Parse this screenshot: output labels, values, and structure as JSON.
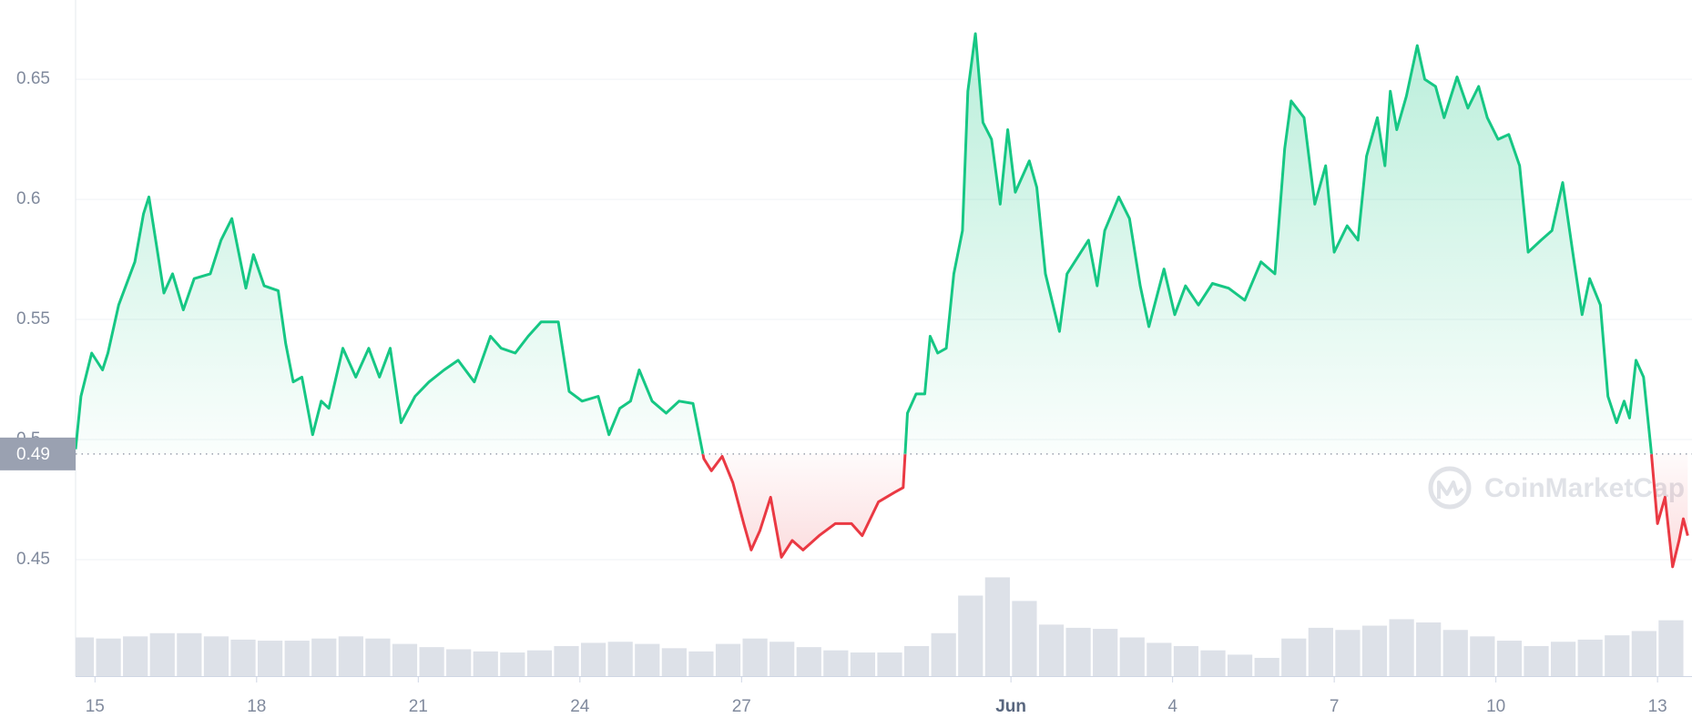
{
  "chart_data": {
    "type": "price-area",
    "reference": {
      "value": 0.494,
      "label": "0.49"
    },
    "watermark": "CoinMarketCap",
    "up_color": "#16c784",
    "down_color": "#ea3943",
    "volume_color": "#dde1e8",
    "grid": true,
    "xlim": [
      14.64,
      44.64
    ],
    "xticks": [
      15,
      18,
      21,
      24,
      27,
      {
        "value": 32,
        "label": "Jun"
      },
      {
        "value": 35,
        "label": "4"
      },
      {
        "value": 38,
        "label": "7"
      },
      {
        "value": 41,
        "label": "10"
      },
      {
        "value": 44,
        "label": "13"
      }
    ],
    "ylim": [
      0.4015,
      0.683
    ],
    "yticks": [
      0.45,
      0.5,
      0.55,
      0.6,
      0.65
    ],
    "y2lim": [
      0,
      100
    ],
    "price": {
      "x": [
        14.64,
        14.74,
        14.94,
        15.14,
        15.24,
        15.44,
        15.74,
        15.9,
        16.0,
        16.14,
        16.28,
        16.44,
        16.64,
        16.84,
        17.14,
        17.34,
        17.54,
        17.8,
        17.94,
        18.14,
        18.4,
        18.54,
        18.68,
        18.84,
        19.04,
        19.2,
        19.34,
        19.6,
        19.84,
        20.08,
        20.28,
        20.48,
        20.68,
        20.94,
        21.2,
        21.48,
        21.74,
        22.04,
        22.34,
        22.54,
        22.8,
        23.04,
        23.28,
        23.6,
        23.8,
        24.04,
        24.34,
        24.54,
        24.74,
        24.94,
        25.1,
        25.34,
        25.6,
        25.84,
        26.1,
        26.3,
        26.44,
        26.64,
        26.84,
        27.04,
        27.18,
        27.34,
        27.54,
        27.74,
        27.94,
        28.14,
        28.44,
        28.74,
        29.04,
        29.24,
        29.54,
        29.84,
        30.0,
        30.08,
        30.24,
        30.4,
        30.5,
        30.64,
        30.8,
        30.94,
        31.1,
        31.2,
        31.34,
        31.48,
        31.64,
        31.8,
        31.94,
        32.08,
        32.34,
        32.48,
        32.64,
        32.9,
        33.04,
        33.24,
        33.44,
        33.6,
        33.74,
        34.0,
        34.2,
        34.4,
        34.56,
        34.84,
        35.04,
        35.24,
        35.48,
        35.74,
        36.04,
        36.34,
        36.64,
        36.9,
        37.08,
        37.2,
        37.44,
        37.64,
        37.84,
        38.0,
        38.24,
        38.44,
        38.6,
        38.8,
        38.94,
        39.04,
        39.16,
        39.34,
        39.54,
        39.68,
        39.88,
        40.04,
        40.28,
        40.48,
        40.68,
        40.84,
        41.04,
        41.24,
        41.44,
        41.6,
        41.84,
        42.04,
        42.24,
        42.44,
        42.6,
        42.74,
        42.94,
        43.08,
        43.24,
        43.38,
        43.48,
        43.6,
        43.74,
        43.88,
        44.0,
        44.14,
        44.28,
        44.4,
        44.48,
        44.56
      ],
      "values": [
        0.496,
        0.518,
        0.536,
        0.529,
        0.536,
        0.556,
        0.574,
        0.594,
        0.601,
        0.581,
        0.561,
        0.569,
        0.554,
        0.567,
        0.569,
        0.583,
        0.592,
        0.563,
        0.577,
        0.564,
        0.562,
        0.54,
        0.524,
        0.526,
        0.502,
        0.516,
        0.513,
        0.538,
        0.526,
        0.538,
        0.526,
        0.538,
        0.507,
        0.518,
        0.524,
        0.529,
        0.533,
        0.524,
        0.543,
        0.538,
        0.536,
        0.543,
        0.549,
        0.549,
        0.52,
        0.516,
        0.518,
        0.502,
        0.513,
        0.516,
        0.529,
        0.516,
        0.511,
        0.516,
        0.515,
        0.492,
        0.487,
        0.493,
        0.482,
        0.465,
        0.454,
        0.462,
        0.476,
        0.451,
        0.458,
        0.454,
        0.46,
        0.465,
        0.465,
        0.46,
        0.474,
        0.478,
        0.48,
        0.511,
        0.519,
        0.519,
        0.543,
        0.536,
        0.538,
        0.569,
        0.587,
        0.645,
        0.669,
        0.632,
        0.625,
        0.598,
        0.629,
        0.603,
        0.616,
        0.605,
        0.569,
        0.545,
        0.569,
        0.576,
        0.583,
        0.564,
        0.587,
        0.601,
        0.592,
        0.564,
        0.547,
        0.571,
        0.552,
        0.564,
        0.556,
        0.565,
        0.563,
        0.558,
        0.574,
        0.569,
        0.621,
        0.641,
        0.634,
        0.598,
        0.614,
        0.578,
        0.589,
        0.583,
        0.618,
        0.634,
        0.614,
        0.645,
        0.629,
        0.643,
        0.664,
        0.65,
        0.647,
        0.634,
        0.651,
        0.638,
        0.647,
        0.634,
        0.625,
        0.627,
        0.614,
        0.578,
        0.583,
        0.587,
        0.607,
        0.576,
        0.552,
        0.567,
        0.556,
        0.518,
        0.507,
        0.516,
        0.509,
        0.533,
        0.526,
        0.496,
        0.465,
        0.476,
        0.447,
        0.458,
        0.467,
        0.46
      ]
    },
    "volume": {
      "axis": "y2",
      "x": [
        14.75,
        15.25,
        15.75,
        16.25,
        16.75,
        17.25,
        17.75,
        18.25,
        18.75,
        19.25,
        19.75,
        20.25,
        20.75,
        21.25,
        21.75,
        22.25,
        22.75,
        23.25,
        23.75,
        24.25,
        24.75,
        25.25,
        25.75,
        26.25,
        26.75,
        27.25,
        27.75,
        28.25,
        28.75,
        29.25,
        29.75,
        30.25,
        30.75,
        31.25,
        31.75,
        32.25,
        32.75,
        33.25,
        33.75,
        34.25,
        34.75,
        35.25,
        35.75,
        36.25,
        36.75,
        37.25,
        37.75,
        38.25,
        38.75,
        39.25,
        39.75,
        40.25,
        40.75,
        41.25,
        41.75,
        42.25,
        42.75,
        43.25,
        43.75,
        44.25
      ],
      "values": [
        36,
        35,
        37,
        40,
        40,
        37,
        34,
        33,
        33,
        35,
        37,
        35,
        30,
        27,
        25,
        23,
        22,
        24,
        28,
        31,
        32,
        30,
        26,
        23,
        30,
        35,
        32,
        27,
        24,
        22,
        22,
        28,
        40,
        75,
        92,
        70,
        48,
        45,
        44,
        36,
        31,
        28,
        24,
        20,
        17,
        35,
        45,
        43,
        47,
        53,
        50,
        43,
        37,
        33,
        28,
        32,
        34,
        38,
        42,
        52
      ]
    }
  }
}
